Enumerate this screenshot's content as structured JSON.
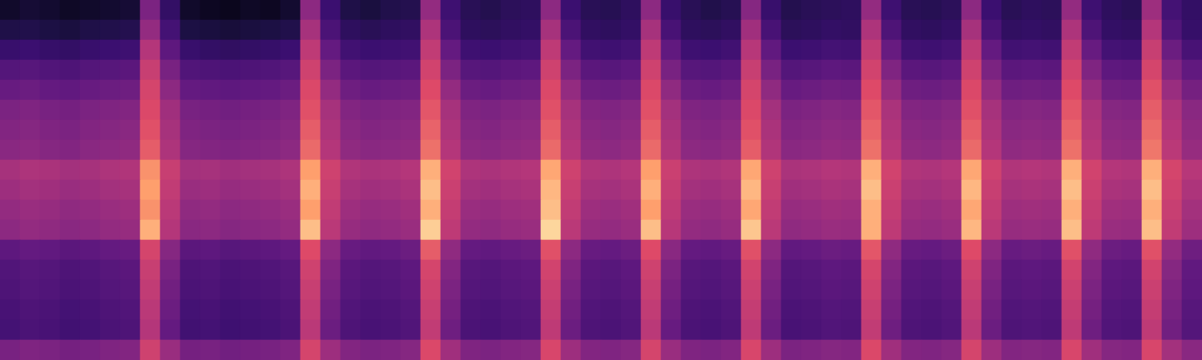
{
  "chart_data": {
    "type": "heatmap",
    "color": "magma",
    "tick_labels": false,
    "color_range": [
      0,
      100
    ],
    "cells": [
      [
        8,
        10,
        9,
        7,
        8,
        9,
        10,
        45,
        22,
        8,
        6,
        5,
        7,
        6,
        9,
        50,
        25,
        14,
        12,
        15,
        16,
        52,
        26,
        18,
        16,
        19,
        20,
        50,
        25,
        18,
        17,
        20,
        50,
        24,
        18,
        15,
        17,
        48,
        24,
        16,
        18,
        19,
        20,
        52,
        26,
        18,
        17,
        19,
        50,
        25,
        18,
        20,
        19,
        52,
        26,
        20,
        18,
        55,
        28,
        22
      ],
      [
        14,
        15,
        13,
        12,
        14,
        15,
        16,
        52,
        28,
        13,
        12,
        11,
        12,
        13,
        15,
        58,
        30,
        20,
        18,
        20,
        21,
        60,
        30,
        20,
        19,
        21,
        22,
        58,
        30,
        21,
        20,
        22,
        58,
        29,
        20,
        19,
        21,
        56,
        29,
        19,
        20,
        22,
        21,
        60,
        31,
        21,
        20,
        22,
        58,
        30,
        21,
        22,
        21,
        60,
        31,
        22,
        21,
        62,
        32,
        23
      ],
      [
        24,
        25,
        23,
        22,
        24,
        25,
        26,
        62,
        36,
        24,
        22,
        21,
        22,
        23,
        25,
        65,
        38,
        27,
        25,
        26,
        27,
        66,
        38,
        26,
        25,
        27,
        28,
        65,
        38,
        27,
        26,
        28,
        65,
        37,
        26,
        25,
        27,
        63,
        37,
        25,
        26,
        28,
        27,
        66,
        39,
        27,
        26,
        28,
        65,
        38,
        27,
        28,
        27,
        66,
        39,
        28,
        27,
        68,
        40,
        29
      ],
      [
        33,
        34,
        32,
        31,
        33,
        34,
        35,
        68,
        44,
        32,
        31,
        30,
        31,
        32,
        34,
        70,
        45,
        35,
        33,
        34,
        35,
        71,
        45,
        34,
        33,
        35,
        36,
        70,
        45,
        35,
        34,
        36,
        70,
        44,
        34,
        33,
        35,
        68,
        44,
        33,
        34,
        36,
        35,
        71,
        46,
        35,
        34,
        36,
        70,
        45,
        35,
        36,
        35,
        71,
        46,
        36,
        35,
        72,
        47,
        37
      ],
      [
        39,
        40,
        38,
        37,
        39,
        40,
        41,
        72,
        50,
        38,
        37,
        36,
        37,
        38,
        40,
        74,
        52,
        41,
        39,
        40,
        41,
        75,
        52,
        40,
        39,
        41,
        42,
        74,
        52,
        41,
        40,
        42,
        74,
        51,
        40,
        39,
        41,
        72,
        51,
        39,
        40,
        42,
        41,
        75,
        53,
        41,
        40,
        42,
        74,
        52,
        41,
        42,
        41,
        75,
        53,
        42,
        41,
        76,
        54,
        43
      ],
      [
        45,
        46,
        44,
        43,
        45,
        46,
        47,
        74,
        56,
        44,
        43,
        42,
        43,
        44,
        46,
        76,
        58,
        47,
        45,
        46,
        47,
        77,
        58,
        46,
        45,
        47,
        48,
        76,
        58,
        47,
        46,
        48,
        76,
        57,
        46,
        45,
        47,
        74,
        57,
        45,
        46,
        48,
        47,
        77,
        59,
        47,
        46,
        48,
        76,
        58,
        47,
        48,
        47,
        77,
        59,
        48,
        47,
        78,
        60,
        49
      ],
      [
        47,
        48,
        46,
        45,
        47,
        48,
        49,
        76,
        58,
        46,
        45,
        44,
        45,
        46,
        48,
        78,
        60,
        49,
        47,
        48,
        49,
        79,
        60,
        48,
        47,
        49,
        50,
        78,
        60,
        49,
        48,
        50,
        78,
        59,
        48,
        47,
        49,
        76,
        59,
        47,
        48,
        50,
        49,
        79,
        61,
        49,
        48,
        50,
        78,
        60,
        49,
        50,
        49,
        79,
        61,
        50,
        49,
        80,
        62,
        51
      ],
      [
        49,
        50,
        48,
        47,
        49,
        50,
        51,
        78,
        60,
        48,
        47,
        46,
        47,
        48,
        50,
        80,
        62,
        51,
        49,
        50,
        51,
        81,
        62,
        50,
        49,
        51,
        52,
        80,
        62,
        51,
        50,
        52,
        80,
        61,
        50,
        49,
        51,
        78,
        61,
        49,
        50,
        52,
        51,
        81,
        63,
        51,
        50,
        52,
        80,
        62,
        51,
        52,
        51,
        81,
        63,
        52,
        51,
        82,
        64,
        53
      ],
      [
        58,
        60,
        59,
        57,
        58,
        60,
        61,
        86,
        68,
        57,
        58,
        56,
        57,
        58,
        60,
        88,
        70,
        61,
        59,
        60,
        62,
        90,
        71,
        60,
        59,
        61,
        62,
        89,
        70,
        61,
        60,
        62,
        88,
        69,
        60,
        59,
        61,
        89,
        70,
        59,
        60,
        62,
        61,
        90,
        71,
        61,
        60,
        62,
        89,
        70,
        61,
        62,
        61,
        90,
        71,
        62,
        61,
        90,
        72,
        63
      ],
      [
        55,
        57,
        56,
        54,
        55,
        57,
        58,
        88,
        66,
        54,
        55,
        53,
        54,
        55,
        57,
        90,
        68,
        58,
        56,
        57,
        59,
        92,
        69,
        57,
        56,
        58,
        59,
        91,
        68,
        58,
        57,
        59,
        90,
        67,
        57,
        56,
        58,
        91,
        68,
        56,
        57,
        59,
        58,
        92,
        69,
        58,
        57,
        59,
        91,
        68,
        58,
        59,
        58,
        92,
        69,
        59,
        58,
        92,
        70,
        60
      ],
      [
        52,
        54,
        53,
        51,
        52,
        54,
        55,
        86,
        64,
        51,
        52,
        50,
        51,
        52,
        54,
        88,
        66,
        55,
        53,
        54,
        56,
        90,
        67,
        54,
        53,
        55,
        56,
        92,
        66,
        55,
        54,
        56,
        88,
        65,
        54,
        53,
        55,
        89,
        66,
        53,
        54,
        56,
        55,
        90,
        67,
        55,
        54,
        56,
        89,
        66,
        55,
        56,
        55,
        90,
        67,
        56,
        55,
        90,
        68,
        57
      ],
      [
        50,
        52,
        51,
        49,
        50,
        52,
        53,
        90,
        62,
        49,
        50,
        48,
        49,
        50,
        52,
        92,
        64,
        53,
        51,
        52,
        54,
        94,
        65,
        52,
        51,
        53,
        54,
        95,
        64,
        53,
        52,
        54,
        92,
        63,
        52,
        51,
        53,
        93,
        64,
        51,
        52,
        54,
        53,
        90,
        65,
        53,
        52,
        54,
        91,
        64,
        53,
        54,
        53,
        92,
        65,
        54,
        53,
        92,
        66,
        55
      ],
      [
        36,
        38,
        37,
        35,
        36,
        38,
        39,
        72,
        48,
        35,
        36,
        34,
        35,
        36,
        38,
        75,
        50,
        39,
        37,
        38,
        40,
        78,
        51,
        38,
        37,
        39,
        40,
        76,
        50,
        39,
        38,
        40,
        75,
        49,
        38,
        37,
        39,
        76,
        50,
        37,
        38,
        40,
        39,
        77,
        51,
        39,
        38,
        40,
        75,
        50,
        39,
        40,
        39,
        76,
        51,
        40,
        39,
        76,
        52,
        41
      ],
      [
        32,
        34,
        33,
        31,
        32,
        34,
        35,
        68,
        44,
        31,
        32,
        30,
        31,
        32,
        34,
        70,
        46,
        35,
        33,
        34,
        36,
        72,
        47,
        34,
        33,
        35,
        36,
        71,
        46,
        35,
        34,
        36,
        70,
        45,
        34,
        33,
        35,
        71,
        46,
        33,
        34,
        36,
        35,
        72,
        47,
        35,
        34,
        36,
        70,
        46,
        35,
        36,
        35,
        71,
        47,
        36,
        35,
        71,
        48,
        37
      ],
      [
        31,
        33,
        32,
        30,
        31,
        33,
        34,
        66,
        42,
        30,
        31,
        29,
        30,
        31,
        33,
        68,
        44,
        34,
        32,
        33,
        35,
        70,
        45,
        33,
        32,
        34,
        35,
        69,
        44,
        34,
        33,
        35,
        68,
        43,
        33,
        32,
        34,
        69,
        44,
        32,
        33,
        35,
        34,
        70,
        45,
        34,
        33,
        35,
        68,
        44,
        34,
        35,
        34,
        69,
        45,
        35,
        34,
        69,
        46,
        36
      ],
      [
        29,
        31,
        30,
        28,
        29,
        31,
        32,
        64,
        40,
        28,
        29,
        27,
        28,
        29,
        31,
        66,
        42,
        32,
        30,
        31,
        33,
        68,
        43,
        31,
        30,
        32,
        33,
        67,
        42,
        32,
        31,
        33,
        66,
        41,
        31,
        30,
        32,
        67,
        42,
        30,
        31,
        33,
        32,
        68,
        43,
        32,
        31,
        33,
        66,
        42,
        32,
        33,
        32,
        67,
        43,
        33,
        32,
        67,
        44,
        34
      ],
      [
        28,
        30,
        29,
        27,
        28,
        30,
        31,
        62,
        38,
        27,
        28,
        26,
        27,
        28,
        30,
        64,
        40,
        31,
        29,
        30,
        32,
        66,
        41,
        30,
        29,
        31,
        32,
        65,
        40,
        31,
        30,
        32,
        64,
        39,
        30,
        29,
        31,
        65,
        40,
        29,
        30,
        32,
        31,
        66,
        41,
        31,
        30,
        32,
        64,
        40,
        31,
        32,
        31,
        65,
        41,
        32,
        31,
        65,
        42,
        33
      ],
      [
        44,
        46,
        45,
        43,
        44,
        46,
        47,
        70,
        54,
        43,
        44,
        42,
        43,
        44,
        46,
        72,
        55,
        47,
        45,
        46,
        48,
        74,
        56,
        46,
        45,
        47,
        48,
        73,
        55,
        47,
        46,
        48,
        72,
        54,
        46,
        45,
        47,
        73,
        55,
        45,
        46,
        48,
        47,
        74,
        56,
        47,
        46,
        48,
        72,
        55,
        47,
        48,
        47,
        73,
        56,
        48,
        47,
        73,
        57,
        49
      ]
    ]
  }
}
